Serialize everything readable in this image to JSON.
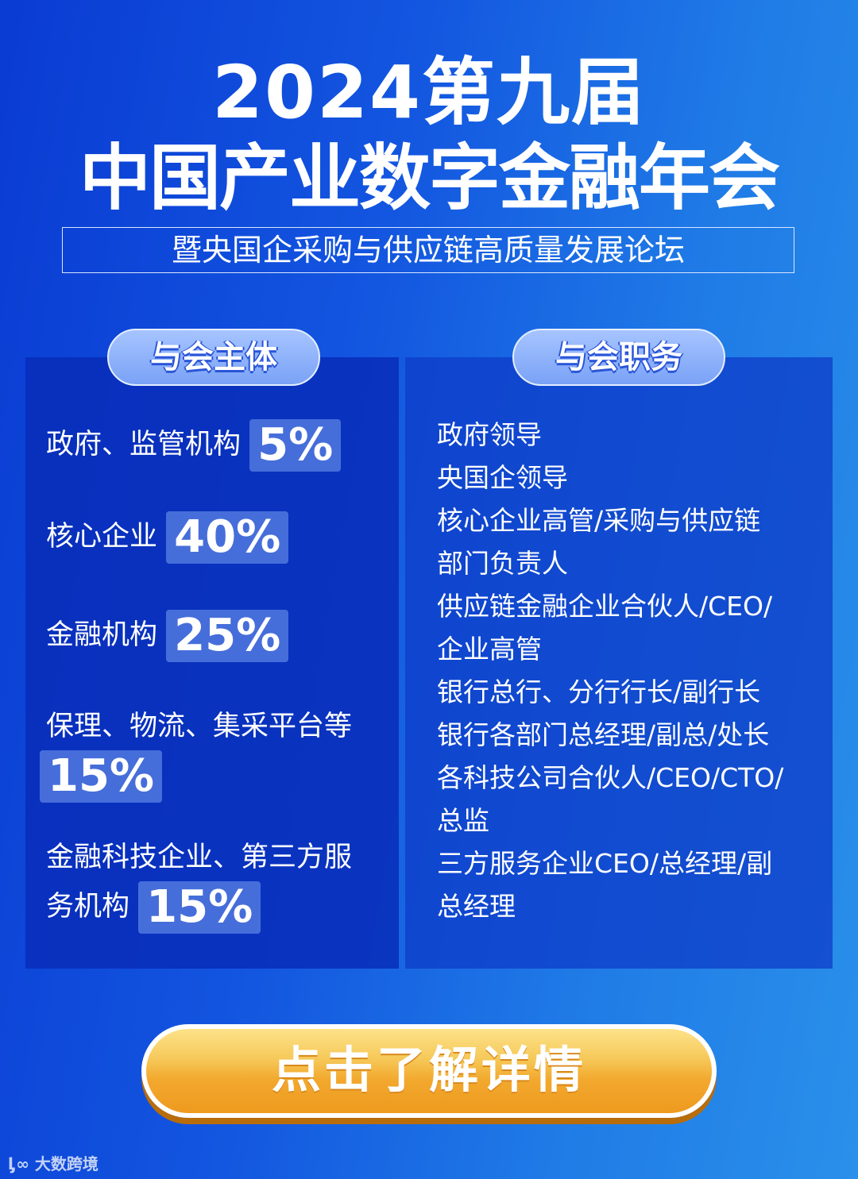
{
  "header": {
    "title_line1": "2024第九届",
    "title_line2": "中国产业数字金融年会",
    "subtitle": "暨央国企采购与供应链高质量发展论坛"
  },
  "left": {
    "heading": "与会主体",
    "items": [
      {
        "label": "政府、监管机构",
        "pct": "5%"
      },
      {
        "label": "核心企业",
        "pct": "40%"
      },
      {
        "label": "金融机构",
        "pct": "25%"
      },
      {
        "label": "保理、物流、集采平台等",
        "pct": "15%"
      },
      {
        "label": "金融科技企业、第三方服务机构",
        "label_a": "金融科技企业、第三方服",
        "label_b": "务机构",
        "pct": "15%"
      }
    ]
  },
  "right": {
    "heading": "与会职务",
    "lines": [
      "政府领导",
      "央国企领导",
      "核心企业高管/采购与供应链",
      "部门负责人",
      "供应链金融企业合伙人/CEO/",
      "企业高管",
      "银行总行、分行行长/副行长",
      "银行各部门总经理/副总/处长",
      "各科技公司合伙人/CEO/CTO/",
      "总监",
      "三方服务企业CEO/总经理/副",
      "总经理"
    ]
  },
  "cta": {
    "label": "点击了解详情"
  },
  "watermark": {
    "text": "大数跨境"
  },
  "colors": {
    "accent_orange": "#f2a92e",
    "panel_blue": "#0c33b8"
  }
}
